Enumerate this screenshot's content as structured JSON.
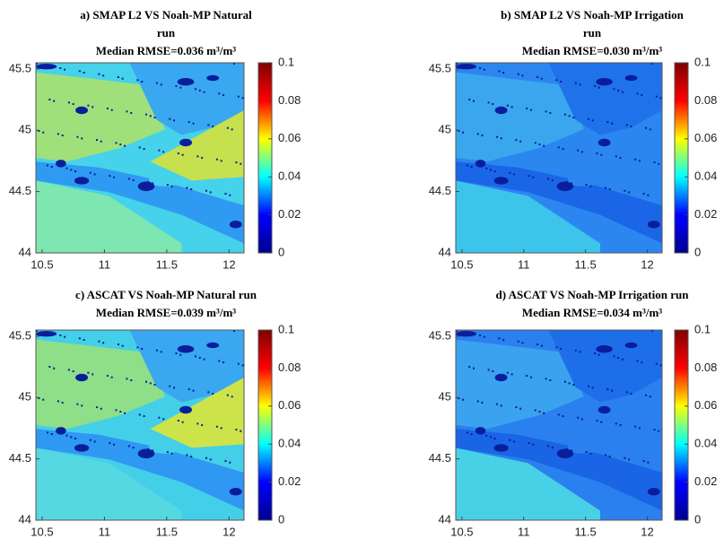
{
  "chart_data": [
    {
      "type": "map",
      "title": [
        "a) SMAP L2 VS Noah-MP Natural",
        "run",
        "Median RMSE=0.036 m³/m³"
      ],
      "xlim": [
        10.45,
        12.12
      ],
      "xticks": [
        10.5,
        11,
        11.5,
        12
      ],
      "ylim": [
        44,
        45.55
      ],
      "yticks": [
        44,
        44.5,
        45,
        45.5
      ],
      "clim": [
        0,
        0.1
      ],
      "cticks": [
        0,
        0.02,
        0.04,
        0.06,
        0.08,
        0.1
      ],
      "colormap": [
        "#00008f",
        "#0000ff",
        "#00ffff",
        "#ffff00",
        "#ff0000",
        "#800000"
      ]
    },
    {
      "type": "map",
      "title": [
        "b) SMAP L2 VS Noah-MP Irrigation",
        "run",
        "Median RMSE=0.030 m³/m³"
      ],
      "xlim": [
        10.45,
        12.12
      ],
      "xticks": [
        10.5,
        11,
        11.5,
        12
      ],
      "ylim": [
        44,
        45.55
      ],
      "yticks": [
        44,
        44.5,
        45,
        45.5
      ],
      "clim": [
        0,
        0.1
      ],
      "cticks": [
        0,
        0.02,
        0.04,
        0.06,
        0.08,
        0.1
      ],
      "colormap": [
        "#00008f",
        "#0000ff",
        "#00ffff",
        "#ffff00",
        "#ff0000",
        "#800000"
      ]
    },
    {
      "type": "map",
      "title": [
        "c) ASCAT VS Noah-MP Natural run",
        "Median RMSE=0.039 m³/m³"
      ],
      "xlim": [
        10.45,
        12.12
      ],
      "xticks": [
        10.5,
        11,
        11.5,
        12
      ],
      "ylim": [
        44,
        45.55
      ],
      "yticks": [
        44,
        44.5,
        45,
        45.5
      ],
      "clim": [
        0,
        0.1
      ],
      "cticks": [
        0,
        0.02,
        0.04,
        0.06,
        0.08,
        0.1
      ],
      "colormap": [
        "#00008f",
        "#0000ff",
        "#00ffff",
        "#ffff00",
        "#ff0000",
        "#800000"
      ]
    },
    {
      "type": "map",
      "title": [
        "d) ASCAT VS Noah-MP Irrigation run",
        "Median RMSE=0.034 m³/m³"
      ],
      "xlim": [
        10.45,
        12.12
      ],
      "xticks": [
        10.5,
        11,
        11.5,
        12
      ],
      "ylim": [
        44,
        45.55
      ],
      "yticks": [
        44,
        44.5,
        45,
        45.5
      ],
      "clim": [
        0,
        0.1
      ],
      "cticks": [
        0,
        0.02,
        0.04,
        0.06,
        0.08,
        0.1
      ],
      "colormap": [
        "#00008f",
        "#0000ff",
        "#00ffff",
        "#ffff00",
        "#ff0000",
        "#800000"
      ]
    }
  ]
}
